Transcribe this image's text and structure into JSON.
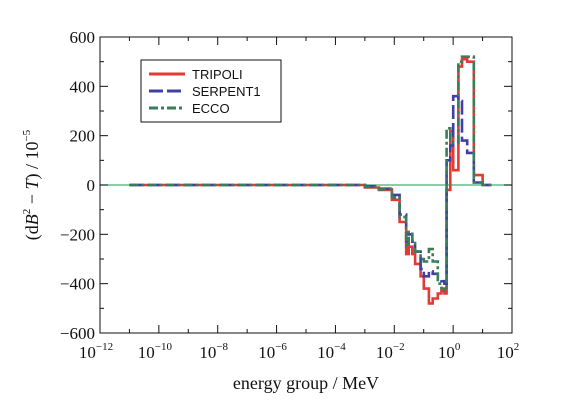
{
  "chart_data": {
    "type": "line",
    "step": true,
    "xscale": "log",
    "xlim": [
      1e-12,
      100
    ],
    "ylim": [
      -600,
      600
    ],
    "xlabel": "energy group / MeV",
    "ylabel_parts": [
      "(d",
      "B",
      "2",
      " − ",
      "T",
      ") / 10",
      "−5"
    ],
    "x_ticks": [
      {
        "v": 1e-12,
        "base": "10",
        "exp": "−12"
      },
      {
        "v": 1e-10,
        "base": "10",
        "exp": "−10"
      },
      {
        "v": 1e-08,
        "base": "10",
        "exp": "−8"
      },
      {
        "v": 1e-06,
        "base": "10",
        "exp": "−6"
      },
      {
        "v": 0.0001,
        "base": "10",
        "exp": "−4"
      },
      {
        "v": 0.01,
        "base": "10",
        "exp": "−2"
      },
      {
        "v": 1,
        "base": "10",
        "exp": "0"
      },
      {
        "v": 100,
        "base": "10",
        "exp": "2"
      }
    ],
    "y_ticks": [
      {
        "v": -600,
        "label": "−600"
      },
      {
        "v": -400,
        "label": "−400"
      },
      {
        "v": -200,
        "label": "−200"
      },
      {
        "v": 0,
        "label": "0"
      },
      {
        "v": 200,
        "label": "200"
      },
      {
        "v": 400,
        "label": "400"
      },
      {
        "v": 600,
        "label": "600"
      }
    ],
    "zero_line_color": "#3cb371",
    "legend_position": "top-left",
    "series": [
      {
        "name": "TRIPOLI",
        "color": "#e53935",
        "dash": "solid",
        "x": [
          1e-11,
          1e-06,
          0.0001,
          0.001,
          0.003,
          0.0083,
          0.0151,
          0.0255,
          0.0308,
          0.0409,
          0.0511,
          0.0784,
          0.1005,
          0.1505,
          0.2013,
          0.2999,
          0.4005,
          0.5027,
          0.6015,
          0.8013,
          1.0024,
          1.5037,
          2.003,
          3.0079,
          5.0164,
          10.0,
          20.0
        ],
        "y": [
          0,
          0,
          0,
          -10,
          -20,
          -60,
          -150,
          -280,
          -250,
          -280,
          -320,
          -370,
          -420,
          -480,
          -460,
          -440,
          -430,
          -440,
          -20,
          220,
          60,
          480,
          510,
          500,
          40,
          0,
          0
        ]
      },
      {
        "name": "SERPENT1",
        "color": "#3f3fa6",
        "dash": "longdash",
        "x": [
          1e-11,
          1e-06,
          0.0001,
          0.001,
          0.003,
          0.0083,
          0.0151,
          0.0255,
          0.0308,
          0.0409,
          0.0511,
          0.0784,
          0.1005,
          0.1505,
          0.2013,
          0.2999,
          0.4005,
          0.5027,
          0.6015,
          0.8013,
          1.0024,
          1.5037,
          2.003,
          3.0079,
          5.0164,
          10.0,
          20.0
        ],
        "y": [
          0,
          0,
          0,
          -5,
          -15,
          -40,
          -120,
          -230,
          -200,
          -230,
          -270,
          -340,
          -370,
          -350,
          -360,
          -380,
          -390,
          -400,
          100,
          160,
          360,
          340,
          180,
          130,
          10,
          0,
          0
        ]
      },
      {
        "name": "ECCO",
        "color": "#3a7d5a",
        "dash": "dashdot",
        "x": [
          1e-11,
          1e-06,
          0.0001,
          0.001,
          0.003,
          0.0083,
          0.0151,
          0.0255,
          0.0308,
          0.0409,
          0.0511,
          0.0784,
          0.1005,
          0.1505,
          0.2013,
          0.2999,
          0.4005,
          0.5027,
          0.6015,
          0.8013,
          1.0024,
          1.5037,
          2.003,
          3.0079,
          5.0164,
          10.0,
          20.0
        ],
        "y": [
          0,
          0,
          0,
          -8,
          -18,
          -50,
          -130,
          -250,
          -190,
          -230,
          -270,
          -300,
          -310,
          -260,
          -310,
          -400,
          -420,
          -430,
          230,
          180,
          170,
          500,
          520,
          520,
          10,
          0,
          0
        ]
      }
    ]
  }
}
